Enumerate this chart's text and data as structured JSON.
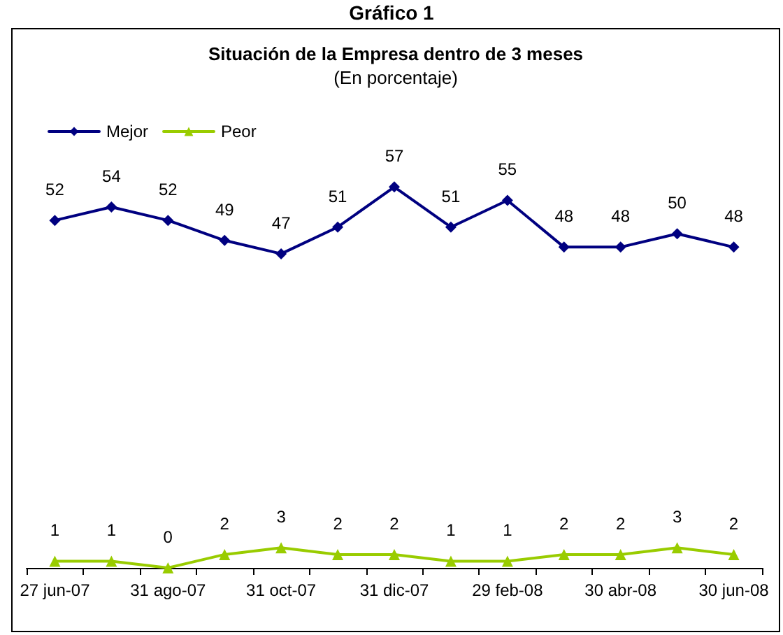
{
  "chart_data": {
    "type": "line",
    "title": "Situación de la Empresa dentro de 3 meses",
    "subtitle": "(En porcentaje)",
    "annotations": [
      "Gráfico 1"
    ],
    "categories": [
      "27 jun-07",
      null,
      "31 ago-07",
      null,
      "31 oct-07",
      null,
      "31 dic-07",
      null,
      "29 feb-08",
      null,
      "30 abr-08",
      null,
      "30 jun-08"
    ],
    "series": [
      {
        "name": "Mejor",
        "color": "#000080",
        "marker": "diamond",
        "values": [
          52,
          54,
          52,
          49,
          47,
          51,
          57,
          51,
          55,
          48,
          48,
          50,
          48
        ]
      },
      {
        "name": "Peor",
        "color": "#99cc00",
        "marker": "triangle",
        "values": [
          1,
          1,
          0,
          2,
          3,
          2,
          2,
          1,
          1,
          2,
          2,
          3,
          2
        ]
      }
    ],
    "data_labels": true,
    "legend": "top left",
    "grid": false
  }
}
